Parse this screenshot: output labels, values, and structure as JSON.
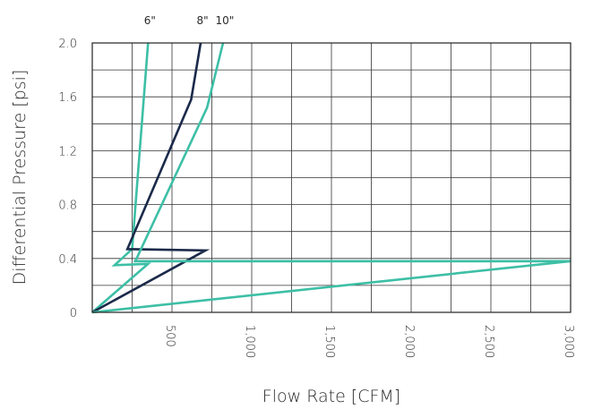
{
  "chart_data": {
    "type": "line",
    "title": "",
    "xlabel": "Flow Rate [CFM]",
    "ylabel": "Differential Pressure [psi]",
    "xlim": [
      0,
      3000
    ],
    "ylim": [
      0,
      2.0
    ],
    "x_ticks": [
      500,
      1000,
      1500,
      2000,
      2500,
      3000
    ],
    "x_tick_labels": [
      "500",
      "1,000",
      "1,500",
      "2,000",
      "2,500",
      "3,000"
    ],
    "y_ticks": [
      0,
      0.4,
      0.8,
      1.2,
      1.6,
      2.0
    ],
    "y_tick_labels": [
      "0",
      "0.4",
      "0.8",
      "1.2",
      "1.6",
      "2.0"
    ],
    "grid": true,
    "legend": "series labels printed above the top edge of the plot",
    "series": [
      {
        "name": "6\"",
        "color": "#3dbfa6",
        "points": [
          [
            0,
            0
          ],
          [
            350,
            0.36
          ],
          [
            140,
            0.35
          ],
          [
            250,
            0.47
          ],
          [
            350,
            2.0
          ]
        ]
      },
      {
        "name": "8\"",
        "color": "#1b2a4a",
        "points": [
          [
            0,
            0
          ],
          [
            710,
            0.46
          ],
          [
            220,
            0.47
          ],
          [
            620,
            1.58
          ],
          [
            680,
            2.0
          ]
        ]
      },
      {
        "name": "10\"",
        "color": "#3dbfa6",
        "points": [
          [
            0,
            0
          ],
          [
            3000,
            0.38
          ],
          [
            270,
            0.38
          ],
          [
            720,
            1.52
          ],
          [
            820,
            2.0
          ]
        ]
      },
      {
        "name": "",
        "color": "#3dbfa6",
        "points": [
          [
            260,
            0.38
          ],
          [
            3000,
            0.38
          ]
        ]
      }
    ]
  }
}
